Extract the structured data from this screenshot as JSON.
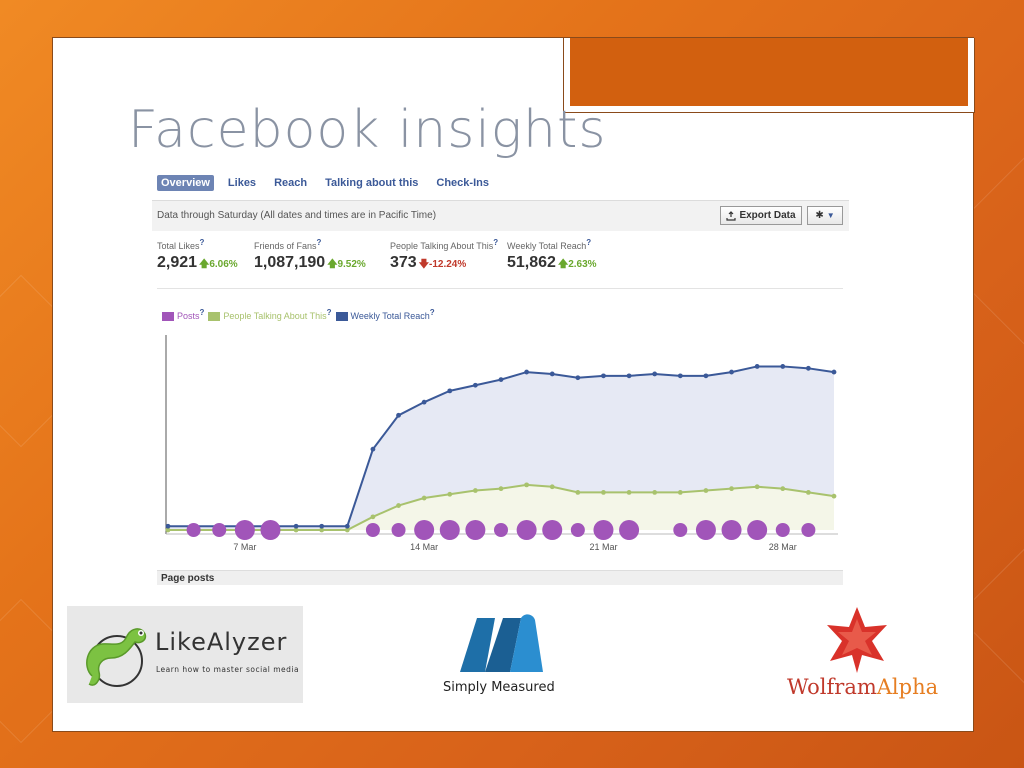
{
  "slide": {
    "title": "Facebook insights"
  },
  "insights": {
    "tabs": [
      {
        "label": "Overview"
      },
      {
        "label": "Likes"
      },
      {
        "label": "Reach"
      },
      {
        "label": "Talking about this"
      },
      {
        "label": "Check-Ins"
      }
    ],
    "data_note": "Data through Saturday (All dates and times are in Pacific Time)",
    "export_label": "Export Data",
    "stats": [
      {
        "label": "Total Likes",
        "value": "2,921",
        "change": "6.06%",
        "direction": "up"
      },
      {
        "label": "Friends of Fans",
        "value": "1,087,190",
        "change": "9.52%",
        "direction": "up"
      },
      {
        "label": "People Talking About This",
        "value": "373",
        "change": "-12.24%",
        "direction": "down"
      },
      {
        "label": "Weekly Total Reach",
        "value": "51,862",
        "change": "2.63%",
        "direction": "up"
      }
    ],
    "help_mark": "?",
    "page_posts_label": "Page posts"
  },
  "chart_data": {
    "type": "line",
    "x_ticks": [
      "7 Mar",
      "14 Mar",
      "21 Mar",
      "28 Mar"
    ],
    "legend": [
      {
        "name": "Posts",
        "color": "#a155b9"
      },
      {
        "name": "People Talking About This",
        "color": "#a8c26d"
      },
      {
        "name": "Weekly Total Reach",
        "color": "#3b5998"
      }
    ],
    "ylim": [
      0,
      100
    ],
    "series": [
      {
        "name": "Weekly Total Reach",
        "color": "#3b5998",
        "values": [
          2,
          2,
          2,
          2,
          2,
          2,
          2,
          2,
          43,
          61,
          68,
          74,
          77,
          80,
          84,
          83,
          81,
          82,
          82,
          83,
          82,
          82,
          84,
          87,
          87,
          86,
          84
        ]
      },
      {
        "name": "People Talking About This",
        "color": "#a8c26d",
        "values": [
          0,
          0,
          0,
          0,
          0,
          0,
          0,
          0,
          7,
          13,
          17,
          19,
          21,
          22,
          24,
          23,
          20,
          20,
          20,
          20,
          20,
          21,
          22,
          23,
          22,
          20,
          18
        ]
      },
      {
        "name": "Posts",
        "color": "#a155b9",
        "sizes": [
          0,
          1,
          1,
          2,
          2,
          0,
          0,
          0,
          1,
          1,
          2,
          2,
          2,
          1,
          2,
          2,
          1,
          2,
          2,
          0,
          1,
          2,
          2,
          2,
          1,
          1,
          0
        ]
      }
    ]
  },
  "logos": {
    "likealyzer": {
      "name": "LikeAlyzer",
      "tagline": "Learn how to master social media"
    },
    "simply_measured": {
      "name": "Simply Measured"
    },
    "wolfram": {
      "part1": "Wolfram",
      "part2": "Alpha"
    }
  }
}
